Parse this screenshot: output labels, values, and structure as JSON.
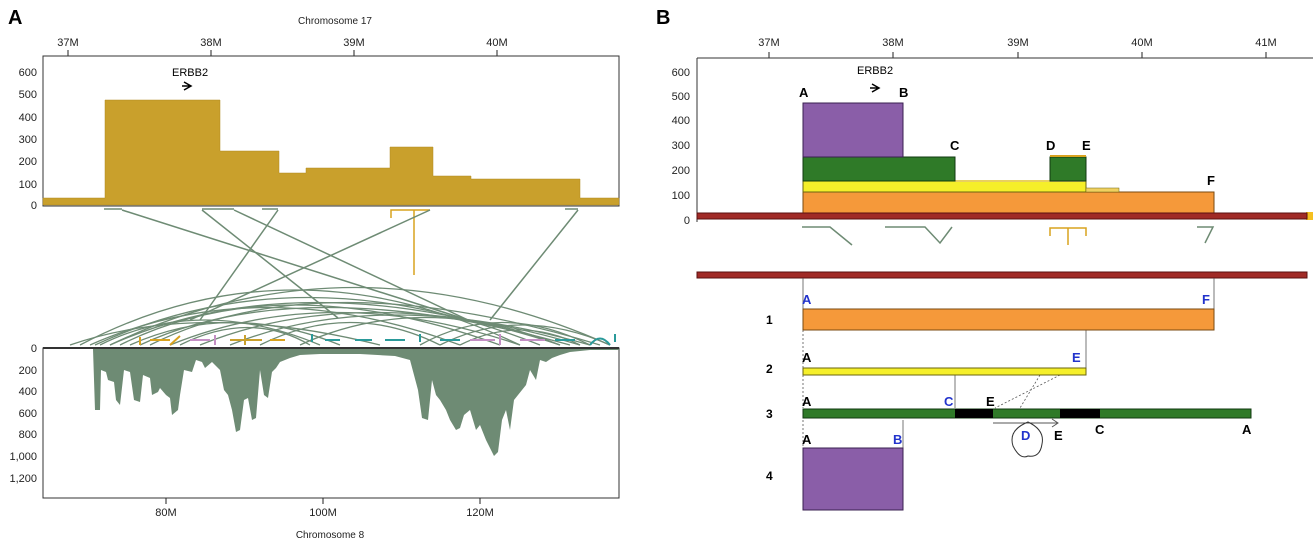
{
  "panel_a": {
    "letter": "A",
    "top_axis_title": "Chromosome 17",
    "top_ticks": [
      "37M",
      "38M",
      "39M",
      "40M"
    ],
    "top_y_ticks": [
      "600",
      "500",
      "400",
      "300",
      "200",
      "100",
      "0"
    ],
    "gene_label": "ERBB2",
    "bottom_y_ticks": [
      "0",
      "200",
      "400",
      "600",
      "800",
      "1,000",
      "1,200"
    ],
    "bottom_ticks": [
      "80M",
      "100M",
      "120M"
    ],
    "bottom_axis_title": "Chromosome 8",
    "colors": {
      "coverage": "#c9a02c",
      "links": "#6e8b74",
      "highlight": "#d9a31f",
      "chr8": "#6e8b74"
    }
  },
  "panel_b": {
    "letter": "B",
    "top_ticks": [
      "37M",
      "38M",
      "39M",
      "40M",
      "41M"
    ],
    "y_ticks": [
      "600",
      "500",
      "400",
      "300",
      "200",
      "100",
      "0"
    ],
    "gene_label": "ERBB2",
    "segment_labels": [
      "A",
      "B",
      "C",
      "D",
      "E",
      "F"
    ],
    "rows": [
      {
        "num": "1",
        "left": "A",
        "right": "F"
      },
      {
        "num": "2",
        "left": "A",
        "right": "E"
      },
      {
        "num": "3",
        "labels": [
          "A",
          "C",
          "E",
          "D",
          "E",
          "C",
          "A"
        ]
      },
      {
        "num": "4",
        "left": "A",
        "right": "B"
      }
    ],
    "colors": {
      "purple": "#8a5ea8",
      "green": "#2f7a28",
      "yellow": "#f5ef2a",
      "orange": "#f5993a",
      "chrom": "#a02a26"
    }
  }
}
